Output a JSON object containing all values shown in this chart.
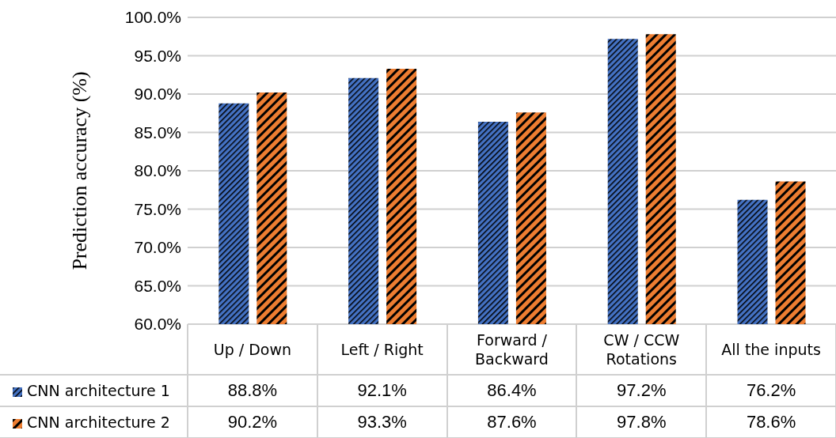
{
  "chart_data": {
    "type": "bar",
    "ylabel": "Prediction accuracy (%)",
    "categories": [
      "Up / Down",
      "Left / Right",
      "Forward / Backward",
      "CW / CCW Rotations",
      "All the inputs"
    ],
    "series": [
      {
        "name": "CNN architecture 1",
        "color": "#4472c4",
        "values": [
          88.8,
          92.1,
          86.4,
          97.2,
          76.2
        ],
        "value_labels": [
          "88.8%",
          "92.1%",
          "86.4%",
          "97.2%",
          "76.2%"
        ]
      },
      {
        "name": "CNN architecture 2",
        "color": "#ed7d31",
        "values": [
          90.2,
          93.3,
          87.6,
          97.8,
          78.6
        ],
        "value_labels": [
          "90.2%",
          "93.3%",
          "87.6%",
          "97.8%",
          "78.6%"
        ]
      }
    ],
    "ylim": [
      60,
      100
    ],
    "yticks": [
      {
        "value": 60,
        "label": "60.0%"
      },
      {
        "value": 65,
        "label": "65.0%"
      },
      {
        "value": 70,
        "label": "70.0%"
      },
      {
        "value": 75,
        "label": "75.0%"
      },
      {
        "value": 80,
        "label": "80.0%"
      },
      {
        "value": 85,
        "label": "85.0%"
      },
      {
        "value": 90,
        "label": "90.0%"
      },
      {
        "value": 95,
        "label": "95.0%"
      },
      {
        "value": 100,
        "label": "100.0%"
      }
    ],
    "grid": "y",
    "legend": "bottom"
  }
}
